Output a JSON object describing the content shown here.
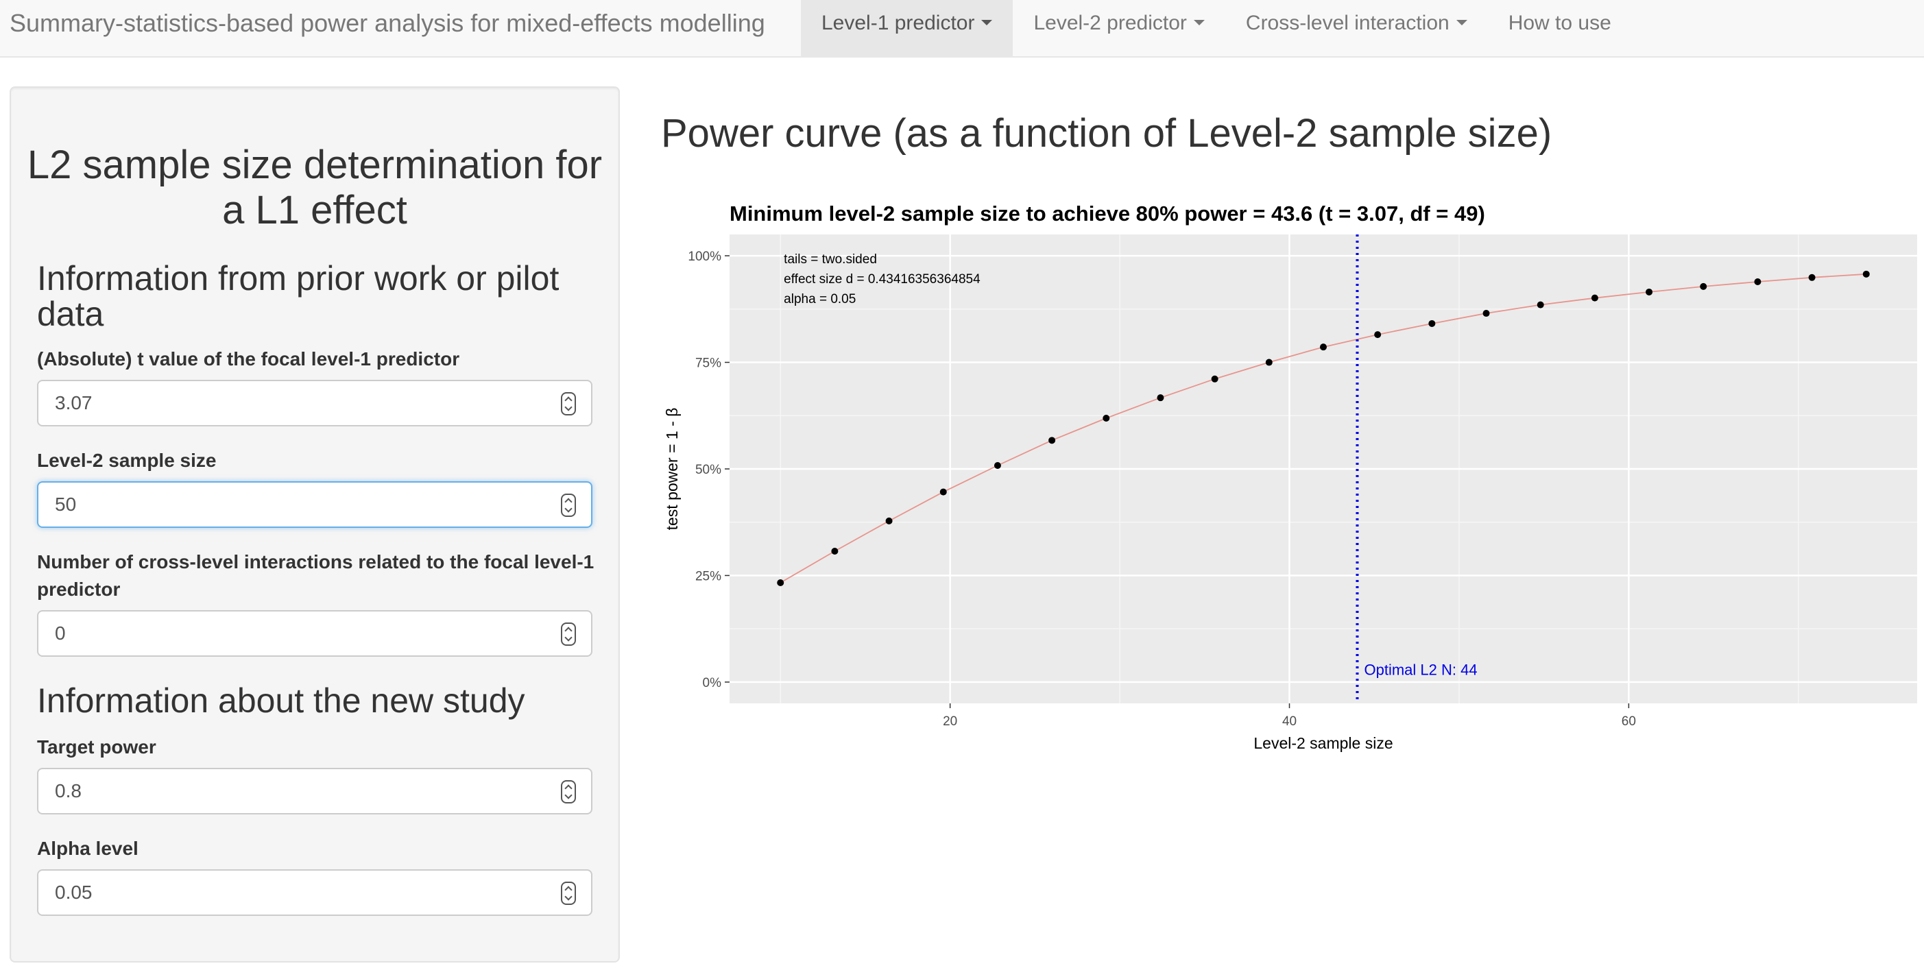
{
  "navbar": {
    "brand": "Summary-statistics-based power analysis for mixed-effects modelling",
    "items": [
      {
        "label": "Level-1 predictor",
        "dropdown": true,
        "active": true
      },
      {
        "label": "Level-2 predictor",
        "dropdown": true,
        "active": false
      },
      {
        "label": "Cross-level interaction",
        "dropdown": true,
        "active": false
      },
      {
        "label": "How to use",
        "dropdown": false,
        "active": false
      }
    ]
  },
  "sidebar": {
    "title": "L2 sample size determination for a L1 effect",
    "section_prior": "Information from prior work or pilot data",
    "t_value": {
      "label": "(Absolute) t value of the focal level-1 predictor",
      "value": "3.07"
    },
    "l2_n": {
      "label": "Level-2 sample size",
      "value": "50"
    },
    "cross_level": {
      "label": "Number of cross-level interactions related to the focal level-1 predictor",
      "value": "0"
    },
    "section_new": "Information about the new study",
    "target_power": {
      "label": "Target power",
      "value": "0.8"
    },
    "alpha": {
      "label": "Alpha level",
      "value": "0.05"
    }
  },
  "main": {
    "title": "Power curve (as a function of Level-2 sample size)"
  },
  "chart_data": {
    "type": "line",
    "title": "Minimum level-2 sample size to achieve 80% power = 43.6 (t = 3.07, df = 49)",
    "xlabel": "Level-2 sample size",
    "ylabel": "test power = 1 - β",
    "xlim": [
      7,
      77
    ],
    "ylim": [
      -0.05,
      1.05
    ],
    "x_ticks": [
      20,
      40,
      60
    ],
    "y_ticks": [
      0,
      0.25,
      0.5,
      0.75,
      1.0
    ],
    "y_tick_labels": [
      "0%",
      "25%",
      "50%",
      "75%",
      "100%"
    ],
    "x": [
      10,
      13.2,
      16.4,
      19.6,
      22.8,
      26,
      29.2,
      32.4,
      35.6,
      38.8,
      42,
      45.2,
      48.4,
      51.6,
      54.8,
      58,
      61.2,
      64.4,
      67.6,
      70.8,
      74
    ],
    "values": [
      0.233,
      0.307,
      0.378,
      0.446,
      0.508,
      0.567,
      0.619,
      0.667,
      0.711,
      0.75,
      0.786,
      0.815,
      0.841,
      0.865,
      0.885,
      0.901,
      0.915,
      0.928,
      0.939,
      0.949,
      0.957
    ],
    "line_color": "#e8948c",
    "point_color": "#000000",
    "vline": {
      "x": 44,
      "label": "Optimal L2 N:  44",
      "color": "#0000e6"
    },
    "annotations": [
      "tails = two.sided",
      "effect size d = 0.43416356364854",
      "alpha = 0.05"
    ],
    "panel_bg": "#ebebeb",
    "grid": true
  }
}
